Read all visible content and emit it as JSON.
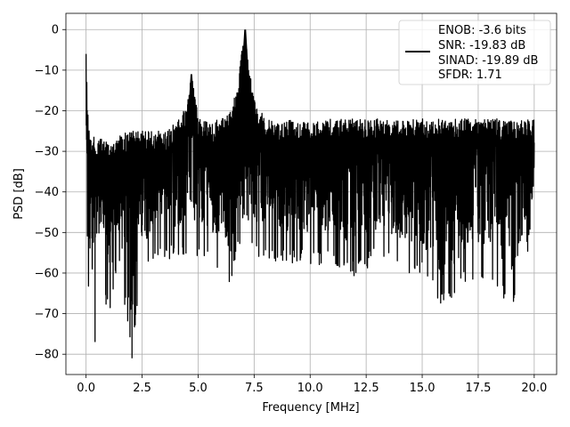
{
  "chart_data": {
    "type": "line",
    "xlabel": "Frequency [MHz]",
    "ylabel": "PSD [dB]",
    "xlim": [
      -0.9,
      21.0
    ],
    "ylim": [
      -85,
      4
    ],
    "xticks": [
      0.0,
      2.5,
      5.0,
      7.5,
      10.0,
      12.5,
      15.0,
      17.5,
      20.0
    ],
    "xtick_labels": [
      "0.0",
      "2.5",
      "5.0",
      "7.5",
      "10.0",
      "12.5",
      "15.0",
      "17.5",
      "20.0"
    ],
    "yticks": [
      0,
      -10,
      -20,
      -30,
      -40,
      -50,
      -60,
      -70,
      -80
    ],
    "ytick_labels": [
      "0",
      "−10",
      "−20",
      "−30",
      "−40",
      "−50",
      "−60",
      "−70",
      "−80"
    ],
    "grid": true,
    "legend_position": "top-right",
    "legend_entries": [
      "ENOB: -3.6 bits",
      "SNR: -19.83 dB",
      "SINAD: -19.89 dB",
      "SFDR: 1.71"
    ],
    "series": [
      {
        "color": "#000000",
        "peak_x": 7.1,
        "peak_y": 0,
        "secondary_peak_x": 4.7,
        "secondary_peak_y": -11,
        "dc_spike_y": -6,
        "noise_floor_upper": -27,
        "noise_floor_lower": -48,
        "min_y": -81,
        "x": [
          0.0,
          0.05,
          0.1,
          0.2,
          0.5,
          1.0,
          1.5,
          2.0,
          2.5,
          3.0,
          3.5,
          4.0,
          4.5,
          4.7,
          5.0,
          5.5,
          6.0,
          6.5,
          6.8,
          7.0,
          7.1,
          7.2,
          7.5,
          8.0,
          8.5,
          9.0,
          10.0,
          11.0,
          12.0,
          13.0,
          14.0,
          15.0,
          16.0,
          17.0,
          18.0,
          19.0,
          20.0
        ],
        "y_upper": [
          -6,
          -15,
          -22,
          -26,
          -27,
          -27,
          -26,
          -25,
          -25,
          -25,
          -25,
          -23,
          -19,
          -11,
          -21,
          -23,
          -22,
          -20,
          -12,
          -3,
          0,
          -6,
          -17,
          -22,
          -23,
          -22,
          -23,
          -22,
          -22,
          -22,
          -22,
          -22,
          -22,
          -22,
          -22,
          -22,
          -22
        ],
        "y_lower": [
          -48,
          -74,
          -77,
          -63,
          -58,
          -71,
          -58,
          -81,
          -60,
          -59,
          -57,
          -57,
          -55,
          -55,
          -56,
          -57,
          -60,
          -63,
          -55,
          -48,
          -45,
          -50,
          -56,
          -57,
          -57,
          -58,
          -58,
          -58,
          -61,
          -57,
          -60,
          -61,
          -69,
          -62,
          -62,
          -69,
          -49
        ]
      }
    ]
  }
}
